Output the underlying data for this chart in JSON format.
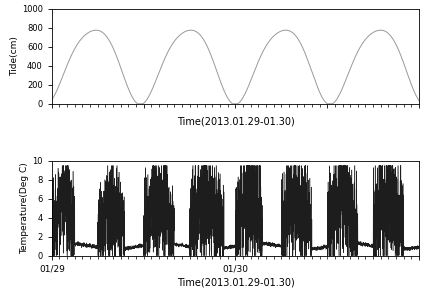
{
  "tide_ylabel": "Tide(cm)",
  "tide_xlabel": "Time(2013.01.29-01.30)",
  "tide_ylim": [
    0,
    1000
  ],
  "tide_yticks": [
    0,
    200,
    400,
    600,
    800,
    1000
  ],
  "temp_ylabel": "Temperature(Deg C)",
  "temp_xlabel": "Time(2013.01.29-01.30)",
  "temp_ylim": [
    0,
    10
  ],
  "temp_yticks": [
    0,
    2,
    4,
    6,
    8,
    10
  ],
  "tide_line_color": "#999999",
  "temp_line_color": "#111111",
  "tide_period_hours": 12.4,
  "total_hours": 48,
  "tide_base": 430,
  "tide_amp1": 390,
  "tide_amp2": 50,
  "temp_base_low": 1.0,
  "spike_max": 5.5
}
